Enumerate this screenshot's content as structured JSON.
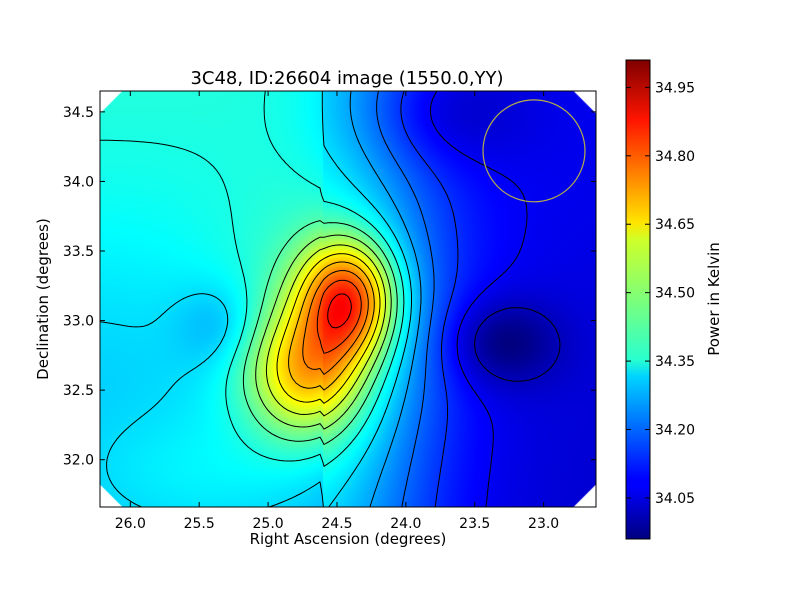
{
  "chart_data": {
    "type": "heatmap",
    "title": "3C48, ID:26604 image (1550.0,YY)",
    "xlabel": "Right Ascension (degrees)",
    "ylabel": "Declination (degrees)",
    "xlim": [
      26.22,
      22.62
    ],
    "ylim": [
      31.66,
      34.65
    ],
    "x_ticks": [
      "26.0",
      "25.5",
      "25.0",
      "24.5",
      "24.0",
      "23.5",
      "23.0"
    ],
    "y_ticks": [
      "32.0",
      "32.5",
      "33.0",
      "33.5",
      "34.0",
      "34.5"
    ],
    "colorbar": {
      "label": "Power in Kelvin",
      "range": [
        33.96,
        35.01
      ],
      "ticks": [
        "34.05",
        "34.20",
        "34.35",
        "34.50",
        "34.65",
        "34.80",
        "34.95"
      ],
      "colormap": "jet"
    },
    "features": [
      {
        "kind": "peak",
        "ra": 24.42,
        "dec": 33.18,
        "value": 35.0
      },
      {
        "kind": "shoulder",
        "ra": 24.75,
        "dec": 32.6,
        "value": 34.82
      },
      {
        "kind": "minimum",
        "ra": 23.3,
        "dec": 32.84,
        "value": 33.98
      },
      {
        "kind": "minimum",
        "ra": 23.75,
        "dec": 34.5,
        "value": 34.0
      },
      {
        "kind": "minimum",
        "ra": 25.35,
        "dec": 32.97,
        "value": 34.28
      }
    ],
    "beam_circle": {
      "ra": 23.07,
      "dec": 34.22,
      "radius_deg": 0.37,
      "color": "#b5ad4a"
    },
    "grid": false,
    "contours": true
  }
}
